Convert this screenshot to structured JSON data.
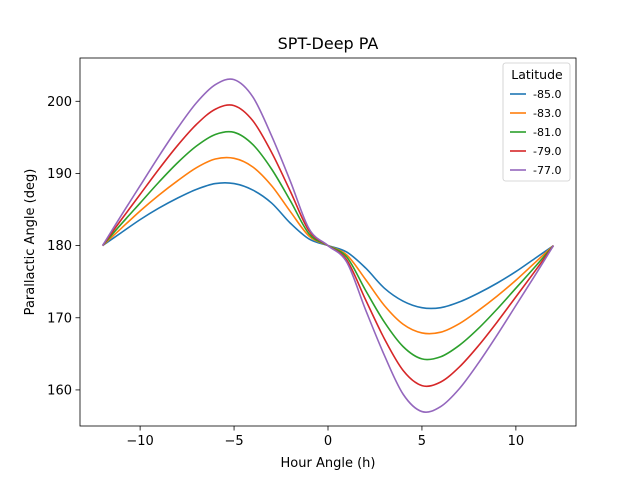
{
  "chart_data": {
    "type": "line",
    "title": "SPT-Deep PA",
    "xlabel": "Hour Angle (h)",
    "ylabel": "Parallactic Angle (deg)",
    "xlim": [
      -13.2,
      13.2
    ],
    "ylim": [
      155,
      206
    ],
    "xticks": [
      -10,
      -5,
      0,
      5,
      10
    ],
    "xtick_labels": [
      "−10",
      "−5",
      "0",
      "5",
      "10"
    ],
    "yticks": [
      160,
      170,
      180,
      190,
      200
    ],
    "ytick_labels": [
      "160",
      "170",
      "180",
      "190",
      "200"
    ],
    "grid": false,
    "legend": {
      "title": "Latitude",
      "placement": "top-right"
    },
    "colors": [
      "#1f77b4",
      "#ff7f0e",
      "#2ca02c",
      "#d62728",
      "#9467bd"
    ],
    "x": [
      -12,
      -11,
      -10,
      -9,
      -8,
      -7,
      -6,
      -5,
      -4,
      -3,
      -2,
      -1,
      0,
      1,
      2,
      3,
      4,
      5,
      6,
      7,
      8,
      9,
      10,
      11,
      12
    ],
    "series": [
      {
        "name": "-85.0",
        "values": [
          180.0,
          181.8,
          183.6,
          185.2,
          186.6,
          187.8,
          188.6,
          188.6,
          187.7,
          185.9,
          183.1,
          180.9,
          180.0,
          179.1,
          176.9,
          174.1,
          172.3,
          171.4,
          171.4,
          172.2,
          173.4,
          174.8,
          176.4,
          178.2,
          180.0
        ]
      },
      {
        "name": "-83.0",
        "values": [
          180.0,
          182.4,
          184.8,
          187.0,
          189.0,
          190.8,
          192.0,
          192.1,
          190.9,
          188.3,
          184.7,
          181.3,
          180.0,
          178.7,
          175.3,
          171.7,
          169.1,
          167.9,
          168.0,
          169.2,
          171.0,
          173.0,
          175.2,
          177.6,
          180.0
        ]
      },
      {
        "name": "-81.0",
        "values": [
          180.0,
          183.0,
          185.9,
          188.8,
          191.5,
          193.8,
          195.4,
          195.7,
          194.0,
          190.6,
          186.2,
          181.6,
          180.0,
          178.4,
          173.8,
          169.4,
          166.0,
          164.3,
          164.6,
          166.2,
          168.5,
          171.2,
          174.1,
          177.0,
          180.0
        ]
      },
      {
        "name": "-79.0",
        "values": [
          180.0,
          183.6,
          187.1,
          190.6,
          193.9,
          196.8,
          198.9,
          199.4,
          197.3,
          192.9,
          187.5,
          182.0,
          180.0,
          178.0,
          172.5,
          167.1,
          162.7,
          160.6,
          161.1,
          163.2,
          166.1,
          169.4,
          172.9,
          176.4,
          180.0
        ]
      },
      {
        "name": "-77.0",
        "values": [
          180.0,
          184.2,
          188.3,
          192.4,
          196.3,
          199.8,
          202.3,
          203.0,
          200.6,
          195.2,
          188.9,
          182.3,
          180.0,
          177.7,
          171.1,
          164.8,
          159.4,
          157.0,
          157.7,
          160.2,
          163.7,
          167.6,
          171.7,
          175.8,
          180.0
        ]
      }
    ]
  }
}
